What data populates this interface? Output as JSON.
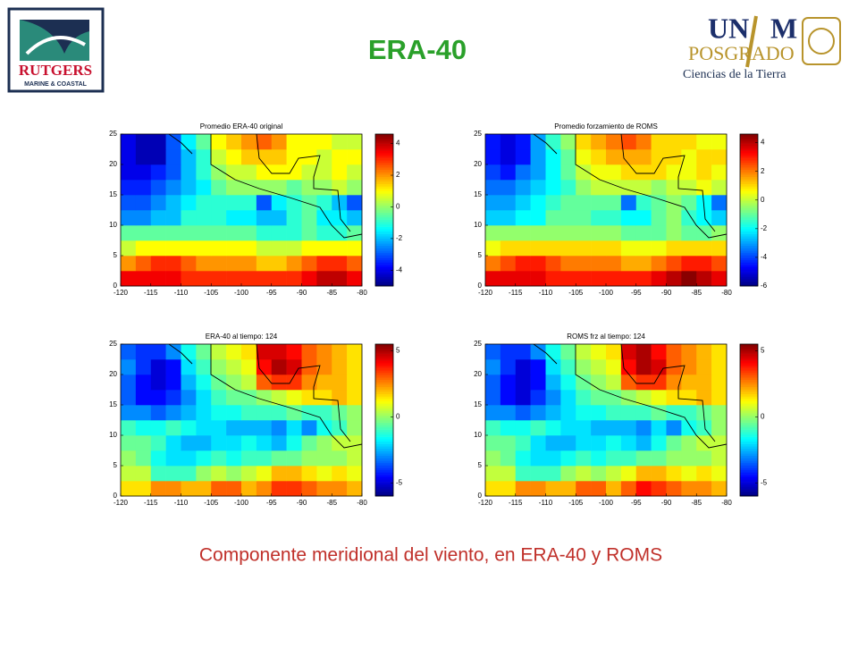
{
  "header": {
    "title": "ERA-40"
  },
  "logos": {
    "rutgers": {
      "name": "RUTGERS",
      "subtitle": "MARINE & COASTAL"
    },
    "unam": {
      "word_a": "UN",
      "word_b": "M",
      "program": "POSGRADO",
      "department": "Ciencias de la Tierra"
    }
  },
  "chart_data": [
    {
      "type": "heatmap",
      "title": "Promedio ERA-40 original",
      "colormap": "jet",
      "xlim": [
        -120,
        -80
      ],
      "ylim": [
        0,
        25
      ],
      "xticks": [
        -120,
        -115,
        -110,
        -105,
        -100,
        -95,
        -90,
        -85,
        -80
      ],
      "yticks": [
        0,
        5,
        10,
        15,
        20,
        25
      ],
      "clim": [
        -5,
        4.6
      ],
      "cticks": [
        -4,
        -2,
        0,
        2,
        4
      ],
      "z": [
        [
          3.5,
          3.5,
          3.5,
          3.5,
          3,
          3,
          3,
          3,
          3,
          3,
          3,
          3,
          3.5,
          4,
          4,
          3.5
        ],
        [
          2,
          2.5,
          3,
          3,
          2.5,
          2,
          2,
          2,
          2,
          1.5,
          1.5,
          2,
          2.5,
          3,
          3,
          2.5
        ],
        [
          0.5,
          1,
          1,
          1,
          1,
          1,
          1,
          1,
          1,
          0.5,
          0.5,
          0.5,
          1,
          1,
          1,
          1
        ],
        [
          -0.5,
          -0.5,
          -0.5,
          -0.5,
          -0.5,
          -0.5,
          -0.5,
          -0.5,
          -0.5,
          -1,
          -1,
          -1,
          -0.5,
          -1,
          -1,
          -0.5
        ],
        [
          -2.5,
          -2.5,
          -2,
          -2,
          -1,
          -1,
          -1,
          -1.5,
          -1.5,
          -2,
          -2,
          -1,
          -0.5,
          -1.5,
          -1.5,
          -2
        ],
        [
          -3,
          -3,
          -2.5,
          -2,
          -1.5,
          -1,
          -1,
          -1,
          -1,
          -3,
          -1.5,
          -1,
          -0.5,
          -1,
          -2,
          -3
        ],
        [
          -3.5,
          -3.5,
          -3,
          -2.5,
          -2,
          -1.5,
          -0.5,
          0,
          0,
          0,
          0,
          -0.5,
          0,
          0,
          0.5,
          0
        ],
        [
          -4,
          -4,
          -3.5,
          -3,
          -2,
          -1,
          0,
          0.5,
          0.5,
          1,
          1,
          1,
          0.5,
          0.5,
          1,
          0.5
        ],
        [
          -4,
          -4.5,
          -4.5,
          -3,
          -2,
          -1,
          0.5,
          1,
          1.5,
          1.5,
          1.5,
          1,
          1,
          0.5,
          1,
          1
        ],
        [
          -4,
          -4.5,
          -4.5,
          -3,
          -1.5,
          -0.5,
          1,
          1.5,
          2,
          2.5,
          2,
          1,
          1,
          1,
          0.5,
          0.5
        ]
      ]
    },
    {
      "type": "heatmap",
      "title": "Promedio forzamiento de ROMS",
      "colormap": "jet",
      "xlim": [
        -120,
        -80
      ],
      "ylim": [
        0,
        25
      ],
      "xticks": [
        -120,
        -115,
        -110,
        -105,
        -100,
        -95,
        -90,
        -85,
        -80
      ],
      "yticks": [
        0,
        5,
        10,
        15,
        20,
        25
      ],
      "clim": [
        -6,
        4.6
      ],
      "cticks": [
        -6,
        -4,
        -2,
        0,
        2,
        4
      ],
      "z": [
        [
          3.5,
          3.5,
          3.5,
          3.5,
          3,
          3,
          3,
          3,
          3,
          3,
          3,
          3.5,
          4,
          4.5,
          4,
          3.5
        ],
        [
          2,
          2.5,
          3,
          3,
          2.5,
          2,
          2,
          2,
          2,
          1.5,
          1.5,
          2,
          2.5,
          3,
          3,
          2.5
        ],
        [
          0.5,
          1,
          1,
          1,
          1,
          1,
          1,
          1,
          1,
          0.5,
          0.5,
          0.5,
          1,
          1,
          1,
          1
        ],
        [
          -0.5,
          -0.5,
          -0.5,
          -0.5,
          -0.5,
          -0.5,
          -0.5,
          -0.5,
          -0.5,
          -1,
          -1,
          -1,
          -0.5,
          -1,
          -1,
          -0.5
        ],
        [
          -2.5,
          -2.5,
          -2,
          -2,
          -1,
          -1,
          -1,
          -1.5,
          -1.5,
          -2,
          -2,
          -1,
          -0.5,
          -1.5,
          -2,
          -2.5
        ],
        [
          -3,
          -3,
          -2.5,
          -2,
          -1.5,
          -1,
          -1,
          -1,
          -1,
          -3.5,
          -1.5,
          -1,
          -0.5,
          -1,
          -2,
          -3.5
        ],
        [
          -3.5,
          -3.5,
          -3,
          -2.5,
          -2,
          -1.5,
          -0.5,
          0,
          0,
          0,
          0,
          -0.5,
          0,
          0,
          0.5,
          0
        ],
        [
          -4,
          -4.5,
          -3.5,
          -3,
          -2,
          -1,
          0,
          0.5,
          0.5,
          1,
          1,
          1,
          0.5,
          0.5,
          1,
          0.5
        ],
        [
          -4.5,
          -5,
          -4.5,
          -3,
          -2,
          -1,
          0.5,
          1,
          1.5,
          1.5,
          1.5,
          1,
          1,
          0.5,
          1,
          1
        ],
        [
          -4.5,
          -5,
          -4.5,
          -3,
          -1.5,
          -0.5,
          1,
          1.5,
          2,
          2.5,
          2,
          1,
          1,
          1,
          0.5,
          0.5
        ]
      ]
    },
    {
      "type": "heatmap",
      "title": "ERA-40 al tiempo: 124",
      "colormap": "jet",
      "xlim": [
        -120,
        -80
      ],
      "ylim": [
        0,
        25
      ],
      "xticks": [
        -120,
        -115,
        -110,
        -105,
        -100,
        -95,
        -90,
        -85,
        -80
      ],
      "yticks": [
        0,
        5,
        10,
        15,
        20,
        25
      ],
      "clim": [
        -6,
        5.5
      ],
      "cticks": [
        -5,
        0,
        5
      ],
      "z": [
        [
          1.5,
          1.5,
          2.5,
          2.5,
          2,
          2,
          3,
          3,
          2,
          2.5,
          3.5,
          3.5,
          3,
          2.5,
          2.5,
          2
        ],
        [
          0.5,
          0.5,
          -1,
          -1,
          -1,
          0,
          0.5,
          0,
          0.5,
          1,
          2,
          2,
          1.5,
          1,
          1.5,
          1
        ],
        [
          0,
          -0.5,
          -1.5,
          -2,
          -2,
          -1.5,
          -1,
          -1.5,
          -1,
          -1,
          -0.5,
          -0.5,
          0,
          0,
          0,
          0.5
        ],
        [
          -0.5,
          -0.5,
          -1,
          -2,
          -2.5,
          -2.5,
          -2,
          -2,
          -1.5,
          -2,
          -2.5,
          -1.5,
          -0.5,
          0,
          0.5,
          0.5
        ],
        [
          -1,
          -1.5,
          -1.5,
          -1,
          -1.5,
          -2,
          -2,
          -2.5,
          -2.5,
          -2.5,
          -3,
          -2,
          -3,
          -1.5,
          -1,
          0
        ],
        [
          -3,
          -3,
          -3.5,
          -3,
          -2.5,
          -2,
          -1.5,
          -1.5,
          -1,
          -1,
          -1,
          -0.5,
          -1,
          -1,
          -0.5,
          0
        ],
        [
          -3.5,
          -4.5,
          -4.5,
          -4,
          -3,
          -2,
          -1,
          -0.5,
          -0.5,
          0,
          0.5,
          1,
          1.5,
          1.5,
          2,
          1.5
        ],
        [
          -3.5,
          -4.5,
          -5,
          -4.5,
          -2.5,
          -1.5,
          -0.5,
          0,
          0.5,
          3,
          3.5,
          3.5,
          2.5,
          2,
          2,
          1.5
        ],
        [
          -3,
          -4,
          -5,
          -4.5,
          -2,
          -1,
          0,
          0.5,
          1,
          4,
          5,
          4.5,
          3,
          2.5,
          2,
          1.5
        ],
        [
          -3.5,
          -4,
          -4,
          -3,
          -1.5,
          -0.5,
          0.5,
          1,
          1.5,
          4.5,
          4.5,
          4,
          3,
          2.5,
          2,
          1.5
        ]
      ]
    },
    {
      "type": "heatmap",
      "title": "ROMS frz al tiempo: 124",
      "colormap": "jet",
      "xlim": [
        -120,
        -80
      ],
      "ylim": [
        0,
        25
      ],
      "xticks": [
        -120,
        -115,
        -110,
        -105,
        -100,
        -95,
        -90,
        -85,
        -80
      ],
      "yticks": [
        0,
        5,
        10,
        15,
        20,
        25
      ],
      "clim": [
        -6,
        5.5
      ],
      "cticks": [
        -5,
        0,
        5
      ],
      "z": [
        [
          1.5,
          1.5,
          2.5,
          2.5,
          2,
          2,
          3,
          3,
          2,
          3,
          4,
          3.5,
          3,
          2.5,
          2.5,
          2
        ],
        [
          0.5,
          0.5,
          -1,
          -1,
          -1,
          0,
          0.5,
          0,
          0.5,
          1,
          2,
          2,
          1.5,
          1,
          1.5,
          1
        ],
        [
          0,
          -0.5,
          -1.5,
          -2,
          -2,
          -1.5,
          -1,
          -1.5,
          -1,
          -1,
          -0.5,
          -0.5,
          0,
          0,
          0,
          0.5
        ],
        [
          -0.5,
          -0.5,
          -1,
          -2,
          -2.5,
          -2.5,
          -2,
          -2,
          -1.5,
          -2,
          -2.5,
          -1.5,
          -0.5,
          0,
          0.5,
          0.5
        ],
        [
          -1,
          -1.5,
          -1.5,
          -1,
          -1.5,
          -2,
          -2,
          -2.5,
          -2.5,
          -2.5,
          -3,
          -2,
          -3,
          -1.5,
          -1,
          0
        ],
        [
          -3,
          -3,
          -3.5,
          -3,
          -2.5,
          -2,
          -1.5,
          -1.5,
          -1,
          -1,
          -1,
          -0.5,
          -1,
          -1,
          -0.5,
          0
        ],
        [
          -3.5,
          -4.5,
          -5,
          -4,
          -3,
          -2,
          -1,
          -0.5,
          -0.5,
          0,
          0.5,
          1,
          1.5,
          1.5,
          2,
          1.5
        ],
        [
          -3.5,
          -4.5,
          -5,
          -4.5,
          -2.5,
          -1.5,
          -0.5,
          0,
          0.5,
          3,
          3.5,
          3.5,
          2.5,
          2,
          2,
          1.5
        ],
        [
          -3,
          -4,
          -5,
          -4.5,
          -2,
          -1,
          0,
          0.5,
          1,
          4,
          5,
          4.5,
          3,
          2.5,
          2,
          1.5
        ],
        [
          -3.5,
          -4,
          -4,
          -3,
          -1.5,
          -0.5,
          0.5,
          1,
          1.5,
          4.5,
          5,
          4,
          3,
          2.5,
          2,
          1.5
        ]
      ]
    }
  ],
  "caption": "Componente meridional del viento, en ERA-40 y ROMS"
}
